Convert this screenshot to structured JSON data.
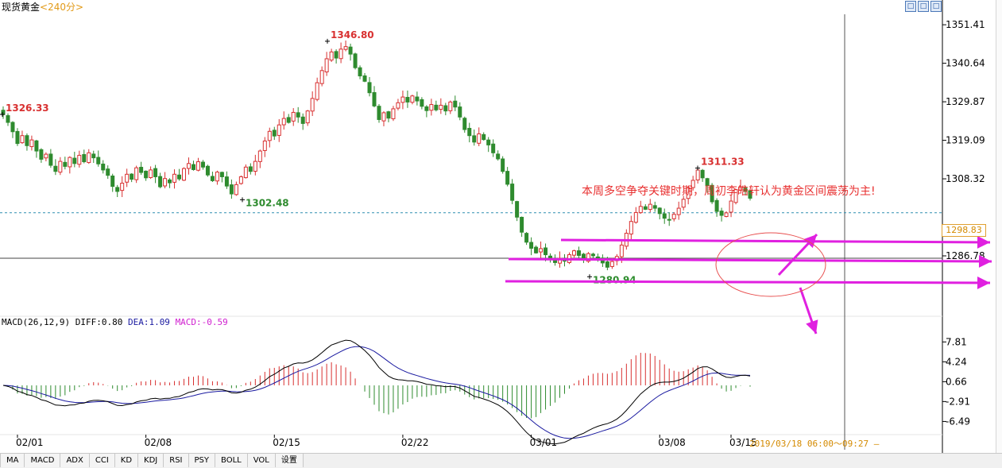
{
  "header": {
    "instrument": "现货黄金",
    "period": "<240分>"
  },
  "window_icons": [
    "□",
    "□",
    "□"
  ],
  "annotation": "本周多空争夺关键时期，周初李皓轩认为黄金区间震荡为主!",
  "macd_header": {
    "label": "MACD(26,12,9)",
    "diff": "DIFF:0.80",
    "dea": "DEA:1.09",
    "macd": "MACD:-0.59"
  },
  "timestamp": "2019/03/18 06:00～09:27 —",
  "tabs": [
    "MA",
    "MACD",
    "ADX",
    "CCI",
    "KD",
    "KDJ",
    "RSI",
    "PSY",
    "BOLL",
    "VOL",
    "设置"
  ],
  "current_price_tag": "1298.83",
  "colors": {
    "up": "#d83030",
    "down": "#2e8b2e",
    "arrow": "#e020e0",
    "diff_line": "#000000",
    "dea_line": "#1a1aa0",
    "price_axis": "#000000"
  },
  "chart_data": [
    {
      "type": "candlestick",
      "ylim": [
        1275,
        1355
      ],
      "y_ticks": [
        "1351.41",
        "1340.64",
        "1329.87",
        "1319.09",
        "1308.32",
        "1286.78"
      ],
      "x_ticks": [
        "02/01",
        "02/08",
        "02/15",
        "02/22",
        "03/01",
        "03/08",
        "03/15"
      ],
      "current_price": 1298.83,
      "closes": [
        1326.3,
        1324.1,
        1321.5,
        1318.2,
        1320.4,
        1317.6,
        1319.2,
        1316.1,
        1313.8,
        1315.2,
        1312.1,
        1310.4,
        1313.2,
        1311.8,
        1314.3,
        1312.6,
        1314.9,
        1313.1,
        1315.6,
        1314.2,
        1312.5,
        1310.8,
        1309.3,
        1306.2,
        1304.8,
        1307.1,
        1309.6,
        1308.2,
        1311.4,
        1310.1,
        1308.6,
        1310.8,
        1308.9,
        1306.1,
        1308.4,
        1307.2,
        1309.6,
        1308.3,
        1311.2,
        1312.6,
        1310.9,
        1313.1,
        1311.6,
        1309.4,
        1307.8,
        1310.2,
        1308.9,
        1306.3,
        1304.1,
        1306.7,
        1308.9,
        1311.6,
        1310.4,
        1313.2,
        1316.1,
        1318.9,
        1321.6,
        1320.3,
        1323.4,
        1325.2,
        1324.1,
        1326.9,
        1325.6,
        1323.8,
        1327.3,
        1330.8,
        1335.2,
        1338.6,
        1341.9,
        1343.8,
        1342.1,
        1344.6,
        1345.3,
        1343.2,
        1339.4,
        1337.1,
        1335.6,
        1332.4,
        1328.7,
        1324.9,
        1326.8,
        1325.3,
        1327.9,
        1329.6,
        1331.2,
        1329.8,
        1331.5,
        1330.1,
        1328.6,
        1327.4,
        1329.1,
        1327.6,
        1328.9,
        1327.3,
        1329.8,
        1328.4,
        1325.6,
        1322.1,
        1320.4,
        1318.6,
        1320.9,
        1319.3,
        1317.8,
        1315.6,
        1313.9,
        1310.4,
        1306.8,
        1302.3,
        1297.6,
        1293.4,
        1290.6,
        1288.9,
        1287.6,
        1288.8,
        1287.1,
        1286.2,
        1284.9,
        1286.1,
        1285.3,
        1287.1,
        1288.2,
        1286.9,
        1285.6,
        1287.4,
        1286.8,
        1285.9,
        1284.8,
        1283.6,
        1285.2,
        1286.6,
        1289.8,
        1293.1,
        1296.4,
        1298.9,
        1300.6,
        1299.8,
        1301.2,
        1300.1,
        1298.6,
        1297.3,
        1296.8,
        1298.4,
        1300.1,
        1302.6,
        1305.8,
        1307.9,
        1310.8,
        1308.6,
        1306.4,
        1301.9,
        1299.2,
        1298.1,
        1298.8,
        1302.1,
        1305.3,
        1306.1,
        1304.9,
        1302.9
      ]
    },
    {
      "type": "macd",
      "ylim": [
        -9,
        10
      ],
      "y_ticks": [
        "7.81",
        "4.24",
        "0.66",
        "-2.91",
        "-6.49"
      ]
    }
  ],
  "labels": {
    "p1": "1326.33",
    "p2": "1346.80",
    "p3": "1302.48",
    "p4": "1311.33",
    "p5": "1280.94"
  }
}
